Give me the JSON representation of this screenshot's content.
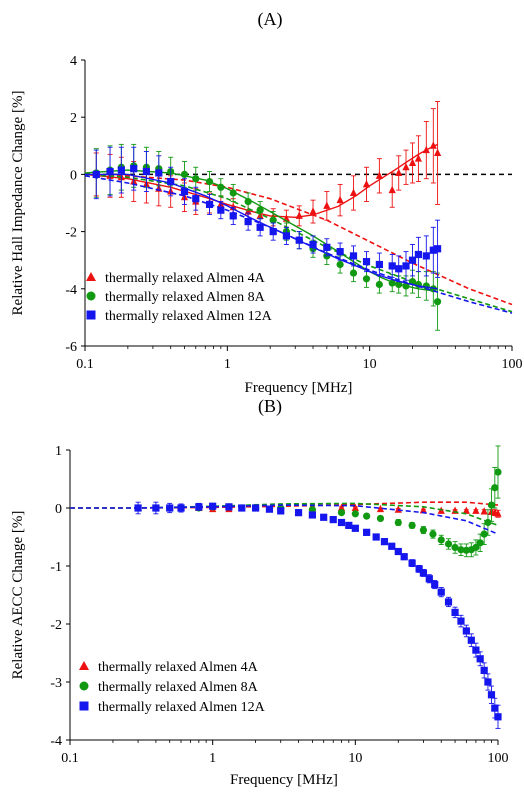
{
  "colors": {
    "red": "#ee1111",
    "green": "#119911",
    "blue": "#1515ee"
  },
  "chart_data": [
    {
      "panel_label": "(A)",
      "type": "scatter",
      "xlabel": "Frequency [MHz]",
      "ylabel": "Relative Hall Impedance Change [%]",
      "xscale": "log",
      "xlim": [
        0.1,
        100
      ],
      "ylim": [
        -6,
        4
      ],
      "xticks": [
        0.1,
        1,
        10,
        100
      ],
      "xtick_labels": [
        "0.1",
        "1",
        "10",
        "100"
      ],
      "yticks": [
        -6,
        -4,
        -2,
        0,
        2,
        4
      ],
      "ytick_labels": [
        "-6",
        "-4",
        "-2",
        "0",
        "2",
        "4"
      ],
      "grid": false,
      "legend_position": "bottom-left",
      "zero_reference_line": "dashed",
      "series": [
        {
          "name": "thermally relaxed Almen 4A",
          "marker": "triangle",
          "color": "red",
          "x": [
            0.12,
            0.15,
            0.18,
            0.22,
            0.27,
            0.33,
            0.4,
            0.5,
            0.6,
            0.75,
            0.9,
            1.1,
            1.4,
            1.7,
            2.1,
            2.6,
            3.2,
            4.0,
            5.0,
            6.2,
            7.7,
            9.5,
            11.7,
            14.4,
            16,
            18,
            20,
            22,
            25,
            28,
            30
          ],
          "y": [
            0.0,
            -0.05,
            -0.1,
            -0.25,
            -0.35,
            -0.5,
            -0.6,
            -0.8,
            -0.95,
            -1.0,
            -1.05,
            -1.15,
            -1.3,
            -1.45,
            -1.5,
            -1.55,
            -1.45,
            -1.3,
            -1.1,
            -0.9,
            -0.65,
            -0.35,
            -0.05,
            -0.55,
            0.05,
            0.25,
            0.4,
            0.55,
            0.85,
            1.0,
            0.75
          ],
          "err": [
            0.75,
            0.75,
            0.7,
            0.7,
            0.65,
            0.6,
            0.55,
            0.5,
            0.45,
            0.35,
            0.3,
            0.3,
            0.3,
            0.3,
            0.3,
            0.3,
            0.35,
            0.4,
            0.5,
            0.55,
            0.6,
            0.6,
            0.6,
            0.6,
            0.6,
            0.6,
            0.7,
            0.8,
            1.0,
            1.3,
            1.8
          ],
          "fit_x": [
            0.1,
            0.2,
            0.4,
            0.7,
            1,
            1.5,
            2,
            3,
            4,
            6,
            8,
            10,
            12,
            15,
            18,
            22,
            26,
            30
          ],
          "fit_y": [
            0.0,
            -0.15,
            -0.45,
            -0.8,
            -1.05,
            -1.3,
            -1.45,
            -1.5,
            -1.42,
            -1.12,
            -0.75,
            -0.4,
            -0.15,
            0.15,
            0.42,
            0.7,
            0.9,
            1.05
          ],
          "model_x": [
            0.1,
            0.2,
            0.5,
            1,
            2,
            5,
            10,
            20,
            50,
            100
          ],
          "model_y": [
            0.0,
            -0.05,
            -0.2,
            -0.45,
            -0.85,
            -1.6,
            -2.35,
            -3.1,
            -4.0,
            -4.55
          ]
        },
        {
          "name": "thermally relaxed Almen 8A",
          "marker": "circle",
          "color": "green",
          "x": [
            0.12,
            0.15,
            0.18,
            0.22,
            0.27,
            0.33,
            0.4,
            0.5,
            0.6,
            0.75,
            0.9,
            1.1,
            1.4,
            1.7,
            2.1,
            2.6,
            3.2,
            4.0,
            5.0,
            6.2,
            7.7,
            9.5,
            11.7,
            14.4,
            16,
            18,
            20,
            22,
            25,
            28,
            30
          ],
          "y": [
            0.05,
            0.15,
            0.25,
            0.3,
            0.25,
            0.2,
            0.1,
            0.0,
            -0.15,
            -0.25,
            -0.45,
            -0.65,
            -0.95,
            -1.25,
            -1.6,
            -2.0,
            -2.3,
            -2.6,
            -2.85,
            -3.15,
            -3.45,
            -3.65,
            -3.85,
            -3.8,
            -3.85,
            -3.9,
            -3.75,
            -3.85,
            -3.9,
            -4.0,
            -4.45
          ],
          "err": [
            0.85,
            0.85,
            0.8,
            0.75,
            0.7,
            0.6,
            0.5,
            0.45,
            0.4,
            0.35,
            0.3,
            0.3,
            0.3,
            0.3,
            0.3,
            0.3,
            0.3,
            0.3,
            0.3,
            0.3,
            0.3,
            0.3,
            0.3,
            0.3,
            0.3,
            0.35,
            0.4,
            0.45,
            0.5,
            0.6,
            1.0
          ],
          "fit_x": [
            0.1,
            0.2,
            0.4,
            0.7,
            1,
            1.5,
            2,
            3,
            4,
            6,
            8,
            10,
            12,
            15,
            18,
            22,
            26,
            30
          ],
          "fit_y": [
            0.05,
            0.15,
            0.05,
            -0.2,
            -0.5,
            -0.95,
            -1.3,
            -1.8,
            -2.15,
            -2.7,
            -3.1,
            -3.4,
            -3.6,
            -3.8,
            -3.9,
            -4.0,
            -4.05,
            -4.1
          ],
          "model_x": [
            0.1,
            0.2,
            0.5,
            1,
            2,
            5,
            10,
            20,
            50,
            100
          ],
          "model_y": [
            0.0,
            -0.1,
            -0.4,
            -0.85,
            -1.55,
            -2.55,
            -3.2,
            -3.75,
            -4.35,
            -4.8
          ]
        },
        {
          "name": "thermally relaxed Almen 12A",
          "marker": "square",
          "color": "blue",
          "x": [
            0.12,
            0.15,
            0.18,
            0.22,
            0.27,
            0.33,
            0.4,
            0.5,
            0.6,
            0.75,
            0.9,
            1.1,
            1.4,
            1.7,
            2.1,
            2.6,
            3.2,
            4.0,
            5.0,
            6.2,
            7.7,
            9.5,
            11.7,
            14.4,
            16,
            18,
            20,
            22,
            25,
            28,
            30
          ],
          "y": [
            0.0,
            0.1,
            0.15,
            0.2,
            0.1,
            0.05,
            -0.25,
            -0.6,
            -0.85,
            -1.05,
            -1.25,
            -1.45,
            -1.65,
            -1.85,
            -2.0,
            -2.15,
            -2.3,
            -2.45,
            -2.55,
            -2.7,
            -2.85,
            -3.05,
            -3.15,
            -3.2,
            -3.3,
            -3.2,
            -3.0,
            -2.8,
            -2.85,
            -2.65,
            -2.6
          ],
          "err": [
            0.85,
            0.85,
            0.8,
            0.75,
            0.7,
            0.6,
            0.5,
            0.45,
            0.4,
            0.35,
            0.3,
            0.3,
            0.3,
            0.3,
            0.3,
            0.3,
            0.3,
            0.3,
            0.3,
            0.3,
            0.35,
            0.35,
            0.4,
            0.4,
            0.45,
            0.5,
            0.55,
            0.6,
            0.7,
            0.8,
            1.0
          ],
          "fit_x": [
            0.1,
            0.2,
            0.4,
            0.7,
            1,
            1.5,
            2,
            3,
            4,
            6,
            8,
            10,
            12,
            15,
            18,
            22,
            26,
            30
          ],
          "fit_y": [
            0.0,
            0.0,
            -0.3,
            -0.75,
            -1.1,
            -1.55,
            -1.85,
            -2.25,
            -2.55,
            -2.95,
            -3.2,
            -3.4,
            -3.55,
            -3.7,
            -3.8,
            -3.9,
            -3.95,
            -4.0
          ],
          "model_x": [
            0.1,
            0.2,
            0.5,
            1,
            2,
            5,
            10,
            20,
            50,
            100
          ],
          "model_y": [
            -0.05,
            -0.3,
            -0.75,
            -1.25,
            -1.85,
            -2.75,
            -3.35,
            -3.85,
            -4.45,
            -4.85
          ]
        }
      ]
    },
    {
      "panel_label": "(B)",
      "type": "scatter",
      "xlabel": "Frequency [MHz]",
      "ylabel": "Relative AECC Change [%]",
      "xscale": "log",
      "xlim": [
        0.1,
        100
      ],
      "ylim": [
        -4,
        1
      ],
      "xticks": [
        0.1,
        1,
        10,
        100
      ],
      "xtick_labels": [
        "0.1",
        "1",
        "10",
        "100"
      ],
      "yticks": [
        -4,
        -3,
        -2,
        -1,
        0,
        1
      ],
      "ytick_labels": [
        "-4",
        "-3",
        "-2",
        "-1",
        "0",
        "1"
      ],
      "grid": false,
      "legend_position": "bottom-left",
      "series": [
        {
          "name": "thermally relaxed Almen 4A",
          "marker": "triangle",
          "color": "red",
          "x": [
            0.3,
            0.5,
            0.8,
            1.0,
            1.3,
            2,
            3,
            5,
            8,
            10,
            15,
            20,
            30,
            40,
            50,
            60,
            70,
            80,
            90,
            95,
            100
          ],
          "y": [
            0.0,
            0.0,
            0.0,
            -0.02,
            -0.02,
            0.0,
            0.0,
            0.0,
            0.0,
            0.0,
            -0.02,
            -0.03,
            -0.04,
            -0.05,
            -0.05,
            -0.05,
            -0.05,
            -0.06,
            -0.07,
            -0.08,
            -0.1
          ],
          "err": [
            0.02,
            0.02,
            0.02,
            0.02,
            0.02,
            0.02,
            0.02,
            0.02,
            0.02,
            0.02,
            0.02,
            0.02,
            0.02,
            0.02,
            0.02,
            0.02,
            0.02,
            0.03,
            0.04,
            0.05,
            0.06
          ],
          "model_x": [
            0.1,
            0.3,
            1,
            3,
            10,
            30,
            60,
            100
          ],
          "model_y": [
            0.0,
            0.0,
            0.01,
            0.03,
            0.06,
            0.1,
            0.1,
            0.05
          ]
        },
        {
          "name": "thermally relaxed Almen 8A",
          "marker": "circle",
          "color": "green",
          "x": [
            0.3,
            0.5,
            0.8,
            1.0,
            1.3,
            2,
            3,
            5,
            8,
            10,
            12,
            15,
            20,
            25,
            30,
            35,
            40,
            45,
            50,
            55,
            60,
            65,
            70,
            75,
            80,
            85,
            90,
            95,
            100
          ],
          "y": [
            0.0,
            0.0,
            0.0,
            0.02,
            0.02,
            0.0,
            0.0,
            -0.03,
            -0.08,
            -0.1,
            -0.14,
            -0.18,
            -0.25,
            -0.3,
            -0.38,
            -0.45,
            -0.55,
            -0.62,
            -0.68,
            -0.72,
            -0.73,
            -0.72,
            -0.68,
            -0.6,
            -0.45,
            -0.25,
            0.05,
            0.35,
            0.62
          ],
          "err": [
            0.05,
            0.05,
            0.04,
            0.04,
            0.04,
            0.03,
            0.03,
            0.03,
            0.03,
            0.03,
            0.04,
            0.04,
            0.05,
            0.05,
            0.06,
            0.07,
            0.08,
            0.09,
            0.1,
            0.1,
            0.11,
            0.12,
            0.13,
            0.15,
            0.18,
            0.22,
            0.28,
            0.35,
            0.45
          ],
          "model_x": [
            0.1,
            0.3,
            1,
            3,
            10,
            30,
            60,
            100
          ],
          "model_y": [
            0.0,
            0.0,
            0.03,
            0.07,
            0.08,
            0.02,
            -0.1,
            -0.3
          ]
        },
        {
          "name": "thermally relaxed Almen 12A",
          "marker": "square",
          "color": "blue",
          "x": [
            0.3,
            0.4,
            0.5,
            0.6,
            0.8,
            1.0,
            1.3,
            1.6,
            2,
            2.5,
            3,
            4,
            5,
            6,
            7,
            8,
            9,
            10,
            12,
            14,
            16,
            18,
            20,
            22,
            25,
            28,
            30,
            33,
            36,
            40,
            45,
            50,
            55,
            60,
            65,
            70,
            75,
            80,
            85,
            90,
            95,
            100
          ],
          "y": [
            0.0,
            0.0,
            0.0,
            0.0,
            0.02,
            0.03,
            0.02,
            0.0,
            0.0,
            -0.02,
            -0.05,
            -0.08,
            -0.12,
            -0.16,
            -0.2,
            -0.25,
            -0.3,
            -0.35,
            -0.42,
            -0.5,
            -0.58,
            -0.66,
            -0.75,
            -0.84,
            -0.95,
            -1.05,
            -1.12,
            -1.22,
            -1.32,
            -1.45,
            -1.62,
            -1.8,
            -1.95,
            -2.12,
            -2.28,
            -2.45,
            -2.6,
            -2.8,
            -3.0,
            -3.22,
            -3.45,
            -3.6
          ],
          "err": [
            0.1,
            0.1,
            0.08,
            0.07,
            0.06,
            0.05,
            0.05,
            0.04,
            0.04,
            0.04,
            0.04,
            0.04,
            0.04,
            0.04,
            0.04,
            0.04,
            0.04,
            0.04,
            0.05,
            0.05,
            0.05,
            0.05,
            0.05,
            0.05,
            0.06,
            0.06,
            0.06,
            0.07,
            0.07,
            0.08,
            0.08,
            0.09,
            0.1,
            0.1,
            0.11,
            0.12,
            0.12,
            0.13,
            0.14,
            0.15,
            0.17,
            0.2
          ],
          "model_x": [
            0.1,
            0.3,
            1,
            3,
            10,
            30,
            60,
            100
          ],
          "model_y": [
            0.0,
            0.0,
            0.02,
            0.05,
            0.04,
            -0.08,
            -0.22,
            -0.45
          ]
        }
      ]
    }
  ]
}
